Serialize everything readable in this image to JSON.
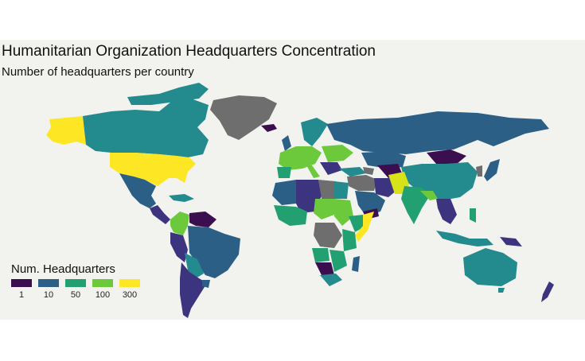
{
  "title": "Humanitarian Organization Headquarters Concentration",
  "subtitle": "Number of headquarters per country",
  "legend": {
    "title": "Num. Headquarters",
    "items": [
      {
        "label": "1",
        "color": "#3b0f4f"
      },
      {
        "label": "10",
        "color": "#2c5f86"
      },
      {
        "label": "50",
        "color": "#23a072"
      },
      {
        "label": "100",
        "color": "#6cc93c"
      },
      {
        "label": "300",
        "color": "#fde725"
      }
    ]
  },
  "colors": {
    "background": "#f2f2ef",
    "no_data": "#6e6e6e",
    "v1": "#3b0f4f",
    "v1b": "#3d3480",
    "v10": "#2c5f86",
    "v10b": "#238a8d",
    "v50": "#23a072",
    "v100": "#6cc93c",
    "v300": "#fde725"
  }
}
